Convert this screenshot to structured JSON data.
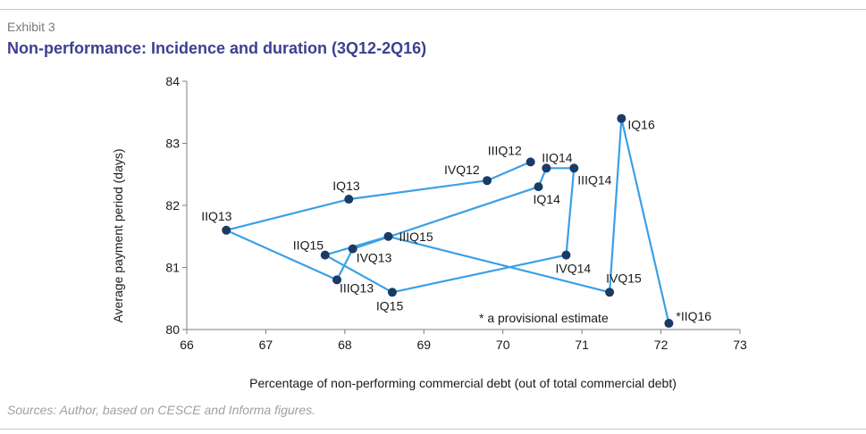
{
  "header": {
    "exhibit": "Exhibit 3",
    "title": "Non-performance: Incidence and duration (3Q12-2Q16)"
  },
  "footer": {
    "source": "Sources: Author, based on CESCE and Informa figures."
  },
  "colors": {
    "title": "#3d3f8f",
    "line": "#3aa0e6",
    "marker": "#1b3a66"
  },
  "chart_data": {
    "type": "line",
    "xlabel": "Percentage of non-performing commercial debt (out of total commercial debt)",
    "ylabel": "Average payment period (days)",
    "xlim": [
      66,
      73
    ],
    "ylim": [
      80,
      84
    ],
    "x_ticks": [
      66,
      67,
      68,
      69,
      70,
      71,
      72,
      73
    ],
    "y_ticks": [
      80,
      81,
      82,
      83,
      84
    ],
    "grid": false,
    "annotation": "* a provisional estimate",
    "series": [
      {
        "points": [
          {
            "label": "IIIQ12",
            "x": 70.35,
            "y": 82.7
          },
          {
            "label": "IVQ12",
            "x": 69.8,
            "y": 82.4
          },
          {
            "label": "IQ13",
            "x": 68.05,
            "y": 82.1
          },
          {
            "label": "IIQ13",
            "x": 66.5,
            "y": 81.6
          },
          {
            "label": "IIIQ13",
            "x": 67.9,
            "y": 80.8
          },
          {
            "label": "IVQ13",
            "x": 68.1,
            "y": 81.3
          },
          {
            "label": "IQ14",
            "x": 70.45,
            "y": 82.3
          },
          {
            "label": "IIQ14",
            "x": 70.55,
            "y": 82.6
          },
          {
            "label": "IIIQ14",
            "x": 70.9,
            "y": 82.6
          },
          {
            "label": "IVQ14",
            "x": 70.8,
            "y": 81.2
          },
          {
            "label": "IQ15",
            "x": 68.6,
            "y": 80.6
          },
          {
            "label": "IIQ15",
            "x": 67.75,
            "y": 81.2
          },
          {
            "label": "IIIQ15",
            "x": 68.55,
            "y": 81.5
          },
          {
            "label": "IVQ15",
            "x": 71.35,
            "y": 80.6
          },
          {
            "label": "IQ16",
            "x": 71.5,
            "y": 83.4
          },
          {
            "label": "*IIQ16",
            "x": 72.1,
            "y": 80.1
          }
        ]
      }
    ]
  }
}
